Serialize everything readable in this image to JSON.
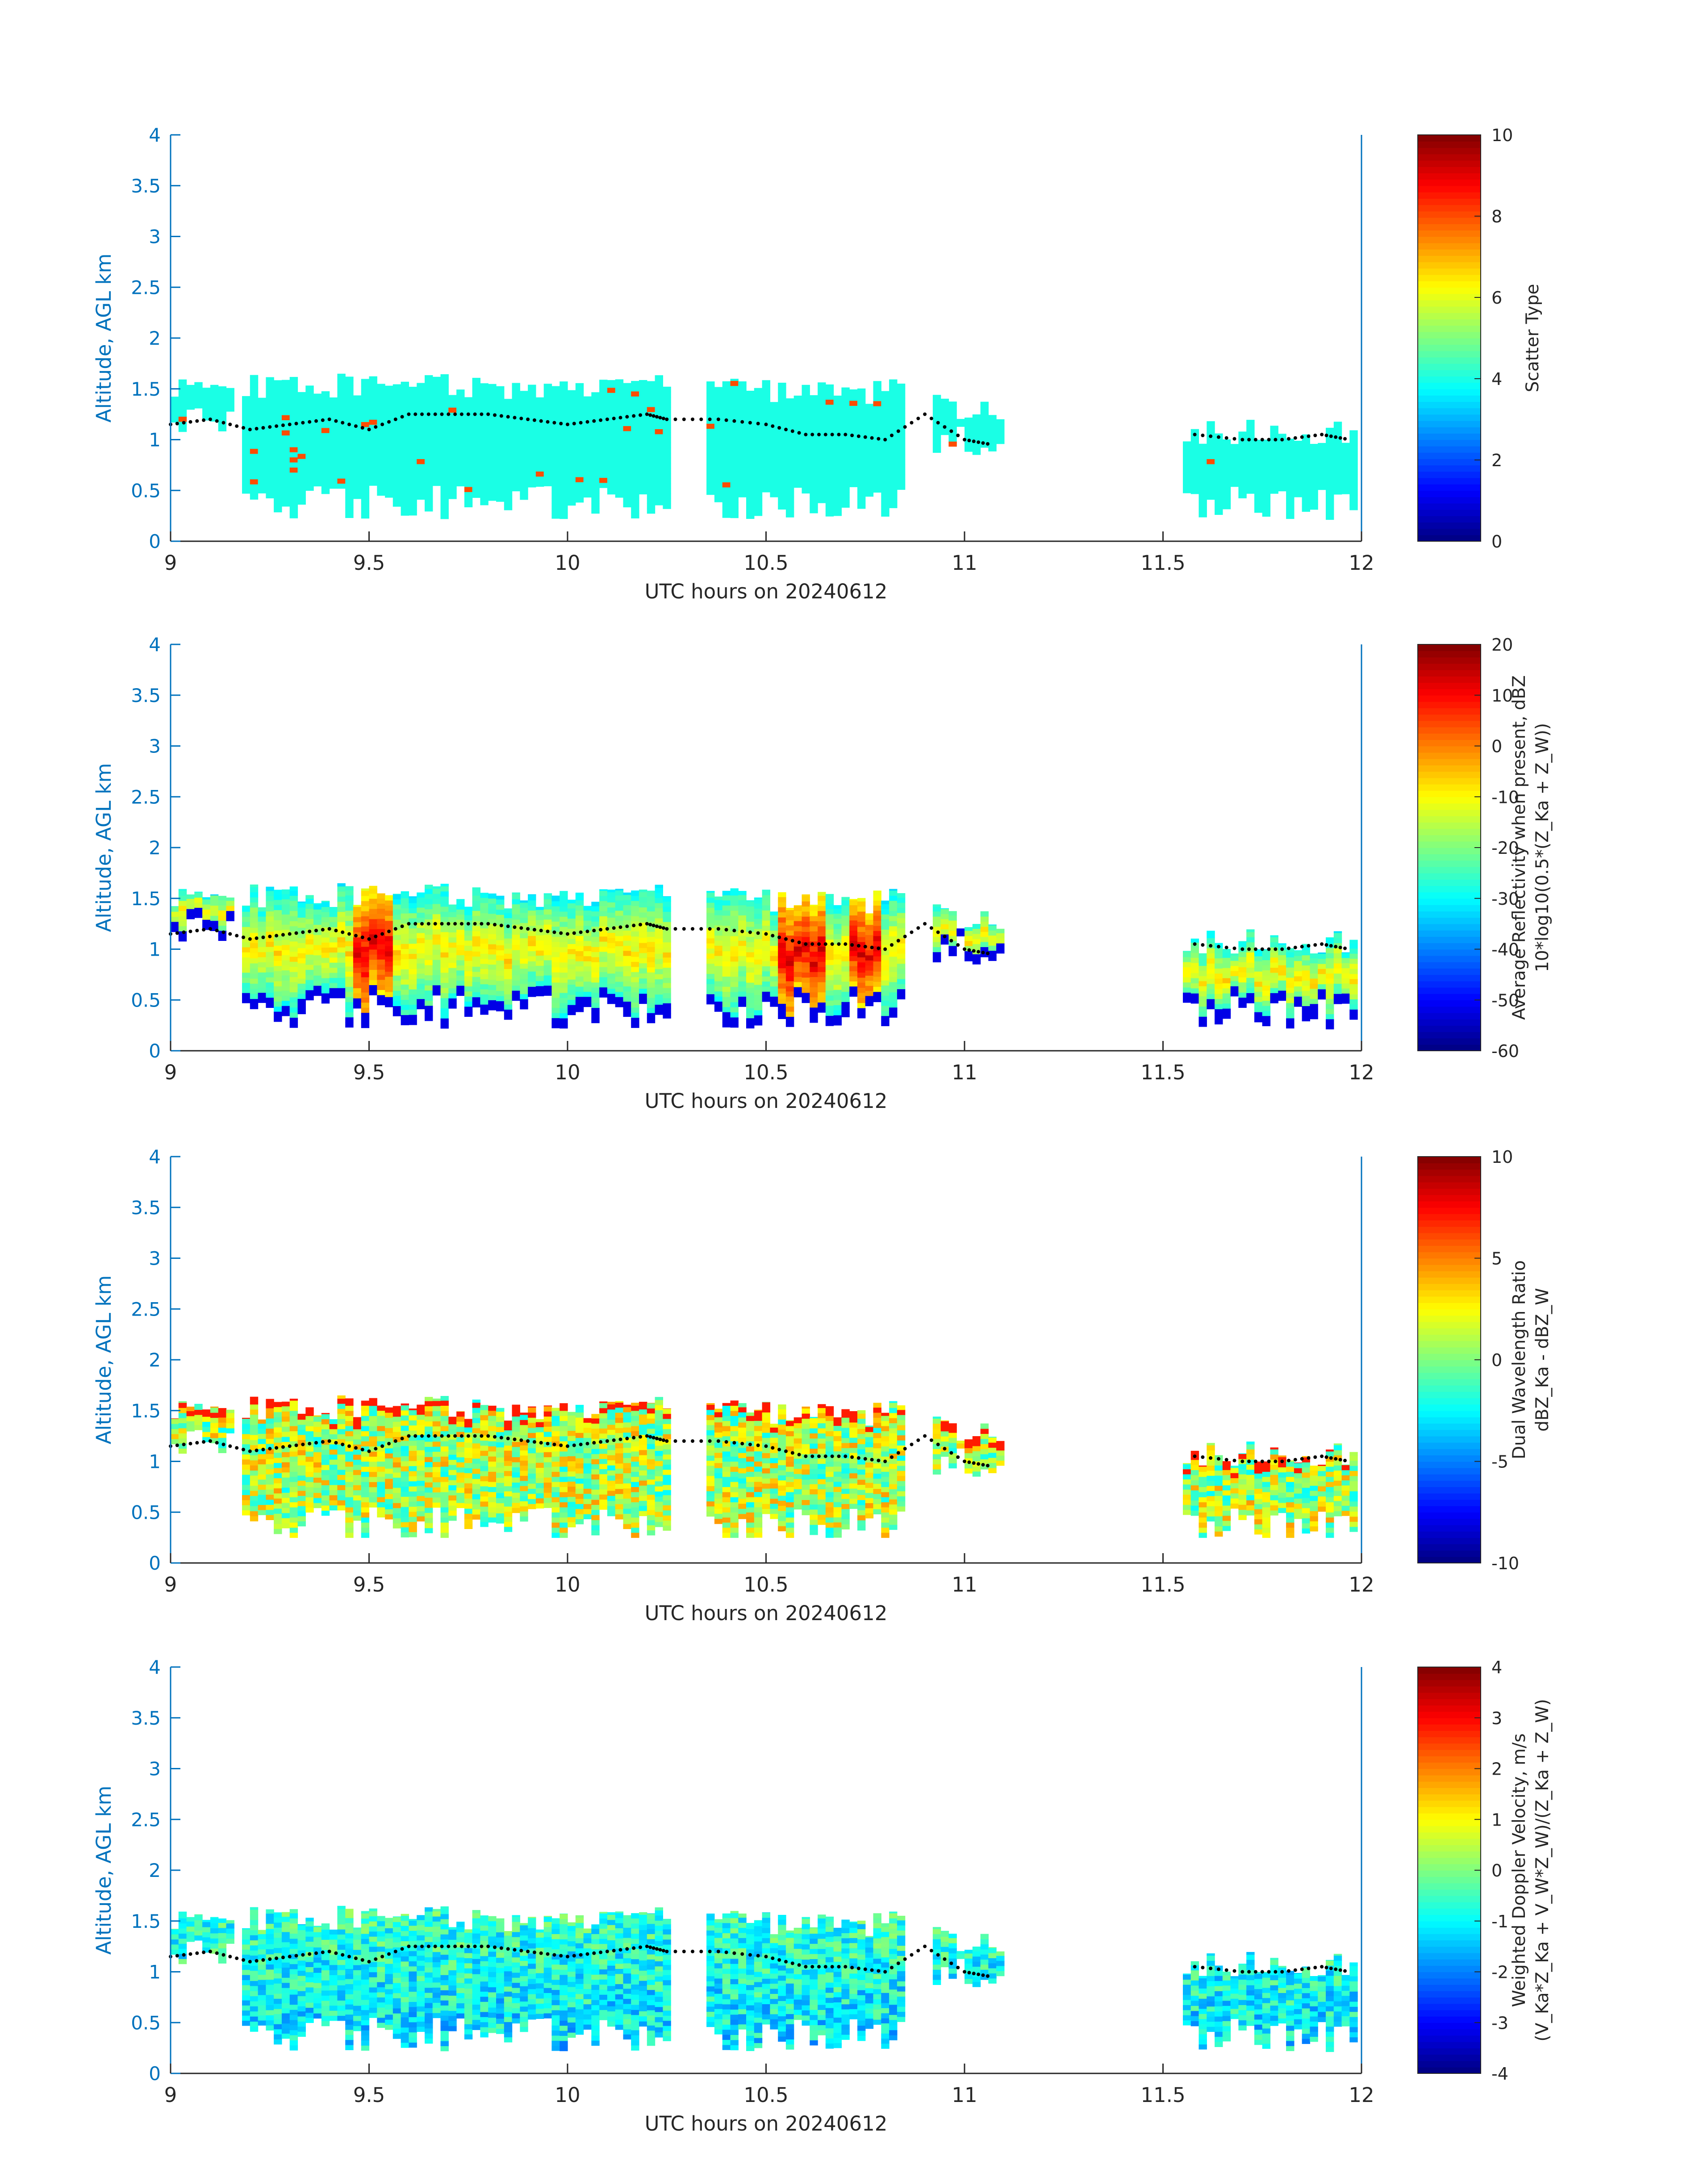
{
  "chart_data": [
    {
      "type": "heatmap",
      "title": "",
      "xlabel": "UTC hours on 20240612",
      "ylabel": "Altitude, AGL km",
      "xlim": [
        9,
        12
      ],
      "ylim": [
        0,
        4
      ],
      "xticks": [
        "9",
        "9.5",
        "10",
        "10.5",
        "11",
        "11.5",
        "12"
      ],
      "yticks": [
        "0",
        "0.5",
        "1",
        "1.5",
        "2",
        "2.5",
        "3",
        "3.5",
        "4"
      ],
      "colormap": "jet",
      "colorbar": {
        "label_lines": [
          "Scatter Type"
        ],
        "limits": [
          0,
          10
        ],
        "ticks": [
          "0",
          "2",
          "4",
          "6",
          "8",
          "10"
        ]
      },
      "field": "scatter_type"
    },
    {
      "type": "heatmap",
      "title": "",
      "xlabel": "UTC hours on 20240612",
      "ylabel": "Altitude, AGL km",
      "xlim": [
        9,
        12
      ],
      "ylim": [
        0,
        4
      ],
      "xticks": [
        "9",
        "9.5",
        "10",
        "10.5",
        "11",
        "11.5",
        "12"
      ],
      "yticks": [
        "0",
        "0.5",
        "1",
        "1.5",
        "2",
        "2.5",
        "3",
        "3.5",
        "4"
      ],
      "colormap": "jet",
      "colorbar": {
        "label_lines": [
          "Average Reflectivity when present, dBZ",
          "10*log10(0.5*(Z_Ka + Z_W))"
        ],
        "limits": [
          -60,
          20
        ],
        "ticks": [
          "-60",
          "-50",
          "-40",
          "-30",
          "-20",
          "-10",
          "0",
          "10",
          "20"
        ]
      },
      "field": "reflectivity"
    },
    {
      "type": "heatmap",
      "title": "",
      "xlabel": "UTC hours on 20240612",
      "ylabel": "Altitude, AGL km",
      "xlim": [
        9,
        12
      ],
      "ylim": [
        0,
        4
      ],
      "xticks": [
        "9",
        "9.5",
        "10",
        "10.5",
        "11",
        "11.5",
        "12"
      ],
      "yticks": [
        "0",
        "0.5",
        "1",
        "1.5",
        "2",
        "2.5",
        "3",
        "3.5",
        "4"
      ],
      "colormap": "jet",
      "colorbar": {
        "label_lines": [
          "Dual Wavelength Ratio",
          "dBZ_Ka - dBZ_W"
        ],
        "limits": [
          -10,
          10
        ],
        "ticks": [
          "-10",
          "-5",
          "0",
          "5",
          "10"
        ]
      },
      "field": "dwr"
    },
    {
      "type": "heatmap",
      "title": "",
      "xlabel": "UTC hours on 20240612",
      "ylabel": "Altitude, AGL km",
      "xlim": [
        9,
        12
      ],
      "ylim": [
        0,
        4
      ],
      "xticks": [
        "9",
        "9.5",
        "10",
        "10.5",
        "11",
        "11.5",
        "12"
      ],
      "yticks": [
        "0",
        "0.5",
        "1",
        "1.5",
        "2",
        "2.5",
        "3",
        "3.5",
        "4"
      ],
      "colormap": "jet",
      "colorbar": {
        "label_lines": [
          "Weighted Doppler Velocity, m/s",
          "(V_Ka*Z_Ka + V_W*Z_W)/(Z_Ka + Z_W)"
        ],
        "limits": [
          -4,
          4
        ],
        "ticks": [
          "-4",
          "-3",
          "-2",
          "-1",
          "0",
          "1",
          "2",
          "3",
          "4"
        ]
      },
      "field": "velocity"
    }
  ],
  "cloud_segments": [
    {
      "x": [
        9.0,
        9.15
      ],
      "bottom": 1.0,
      "top": 1.6
    },
    {
      "x": [
        9.18,
        10.26
      ],
      "bottom": 0.2,
      "top": 1.65
    },
    {
      "x": [
        10.35,
        10.85
      ],
      "bottom": 0.2,
      "top": 1.6
    },
    {
      "x": [
        10.92,
        11.1
      ],
      "bottom": 0.85,
      "top": 1.45
    },
    {
      "x": [
        11.55,
        11.98
      ],
      "bottom": 0.2,
      "top": 1.2
    }
  ],
  "cloud_base_line": {
    "x": [
      9.0,
      9.1,
      9.2,
      9.3,
      9.4,
      9.5,
      9.6,
      9.7,
      9.8,
      9.9,
      10.0,
      10.1,
      10.2,
      10.25,
      10.38,
      10.5,
      10.6,
      10.7,
      10.8,
      10.9,
      11.0,
      11.07,
      11.58,
      11.7,
      11.8,
      11.9,
      11.97
    ],
    "y": [
      1.15,
      1.2,
      1.1,
      1.15,
      1.2,
      1.1,
      1.25,
      1.25,
      1.25,
      1.2,
      1.15,
      1.2,
      1.25,
      1.2,
      1.2,
      1.15,
      1.05,
      1.05,
      1.0,
      1.25,
      1.0,
      0.95,
      1.05,
      1.0,
      1.0,
      1.05,
      1.0
    ]
  }
}
